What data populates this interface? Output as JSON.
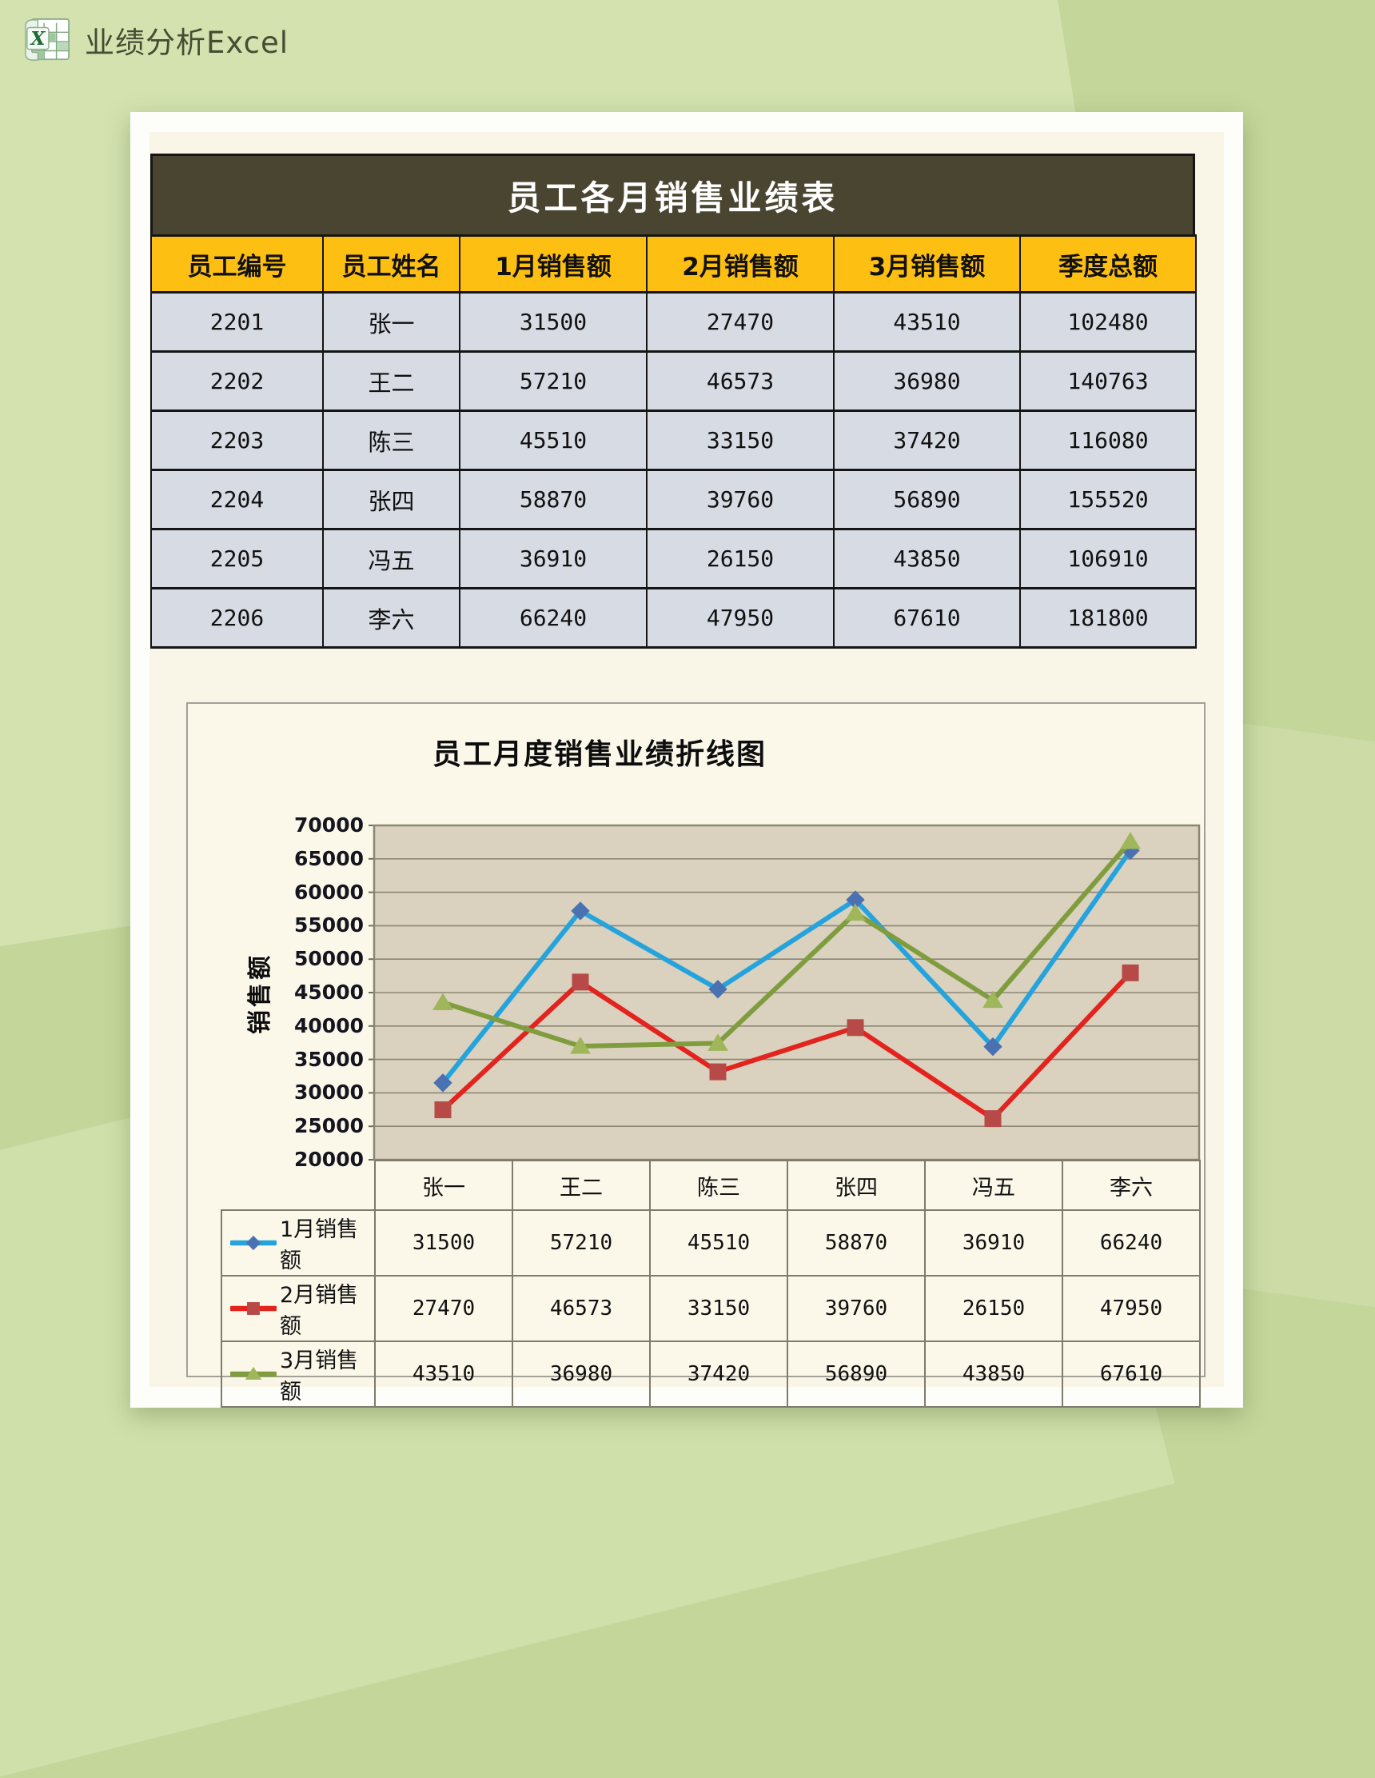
{
  "header": {
    "app_title": "业绩分析Excel",
    "icon": "excel-icon"
  },
  "table": {
    "title": "员工各月销售业绩表",
    "columns": [
      "员工编号",
      "员工姓名",
      "1月销售额",
      "2月销售额",
      "3月销售额",
      "季度总额"
    ],
    "rows": [
      [
        "2201",
        "张一",
        "31500",
        "27470",
        "43510",
        "102480"
      ],
      [
        "2202",
        "王二",
        "57210",
        "46573",
        "36980",
        "140763"
      ],
      [
        "2203",
        "陈三",
        "45510",
        "33150",
        "37420",
        "116080"
      ],
      [
        "2204",
        "张四",
        "58870",
        "39760",
        "56890",
        "155520"
      ],
      [
        "2205",
        "冯五",
        "36910",
        "26150",
        "43850",
        "106910"
      ],
      [
        "2206",
        "李六",
        "66240",
        "47950",
        "67610",
        "181800"
      ]
    ]
  },
  "chart_data": {
    "type": "line",
    "title": "员工月度销售业绩折线图",
    "ylabel": "销售额",
    "categories": [
      "张一",
      "王二",
      "陈三",
      "张四",
      "冯五",
      "李六"
    ],
    "series": [
      {
        "name": "1月销售额",
        "values": [
          31500,
          57210,
          45510,
          58870,
          36910,
          66240
        ],
        "line_color": "#24a3dd",
        "marker_color": "#4a72b2",
        "marker": "diamond"
      },
      {
        "name": "2月销售额",
        "values": [
          27470,
          46573,
          33150,
          39760,
          26150,
          47950
        ],
        "line_color": "#e3231e",
        "marker_color": "#b74a47",
        "marker": "square"
      },
      {
        "name": "3月销售额",
        "values": [
          43510,
          36980,
          37420,
          56890,
          43850,
          67610
        ],
        "line_color": "#7f9d3e",
        "marker_color": "#9fb65a",
        "marker": "triangle"
      }
    ],
    "ylim": [
      20000,
      70000
    ],
    "ytick_step": 5000,
    "grid": "horizontal",
    "legend_position": "data-table-left",
    "plot_bg": "#dad2be",
    "grid_color": "#8b8674",
    "data_table_shown": true
  },
  "colors": {
    "page_bg": "#c4d69a",
    "paper_bg": "#f9f6e8",
    "table_title_bg": "#4a4530",
    "table_header_bg": "#fdbf12",
    "table_row_bg": "#d7dbe4",
    "chart_bg": "#fbf8ea"
  }
}
